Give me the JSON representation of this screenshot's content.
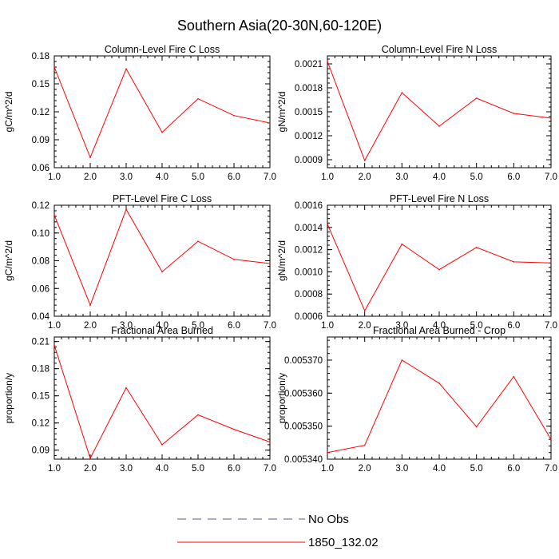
{
  "figure": {
    "title": "Southern Asia(20-30N,60-120E)"
  },
  "legend": {
    "entries": [
      {
        "label": "No Obs",
        "style": "dashed",
        "color": "#5a5a8a"
      },
      {
        "label": "1850_132.02",
        "style": "solid",
        "color": "#ff0000"
      }
    ]
  },
  "chart_data": [
    {
      "type": "line",
      "title": "Column-Level Fire C Loss",
      "ylabel": "gC/m^2/d",
      "x": [
        1,
        2,
        3,
        4,
        5,
        6,
        7
      ],
      "xticks": [
        "1.0",
        "2.0",
        "3.0",
        "4.0",
        "5.0",
        "6.0",
        "7.0"
      ],
      "xlim": [
        1,
        7
      ],
      "ylim": [
        0.06,
        0.18
      ],
      "yticks": [
        "0.06",
        "0.09",
        "0.12",
        "0.15",
        "0.18"
      ],
      "ytick_values": [
        0.06,
        0.09,
        0.12,
        0.15,
        0.18
      ],
      "series": [
        {
          "name": "1850_132.02",
          "color": "#ff0000",
          "values": [
            0.168,
            0.071,
            0.166,
            0.098,
            0.134,
            0.116,
            0.108
          ]
        }
      ]
    },
    {
      "type": "line",
      "title": "Column-Level Fire N Loss",
      "ylabel": "gN/m^2/d",
      "x": [
        1,
        2,
        3,
        4,
        5,
        6,
        7
      ],
      "xticks": [
        "1.0",
        "2.0",
        "3.0",
        "4.0",
        "5.0",
        "6.0",
        "7.0"
      ],
      "xlim": [
        1,
        7
      ],
      "ylim": [
        0.0008,
        0.0022
      ],
      "yticks": [
        "0.0009",
        "0.0012",
        "0.0015",
        "0.0018",
        "0.0021"
      ],
      "ytick_values": [
        0.0009,
        0.0012,
        0.0015,
        0.0018,
        0.0021
      ],
      "series": [
        {
          "name": "1850_132.02",
          "color": "#ff0000",
          "values": [
            0.00213,
            0.00089,
            0.00174,
            0.00132,
            0.00167,
            0.00148,
            0.00142
          ]
        }
      ]
    },
    {
      "type": "line",
      "title": "PFT-Level Fire C Loss",
      "ylabel": "gC/m^2/d",
      "x": [
        1,
        2,
        3,
        4,
        5,
        6,
        7
      ],
      "xticks": [
        "1.0",
        "2.0",
        "3.0",
        "4.0",
        "5.0",
        "6.0",
        "7.0"
      ],
      "xlim": [
        1,
        7
      ],
      "ylim": [
        0.04,
        0.12
      ],
      "yticks": [
        "0.04",
        "0.06",
        "0.08",
        "0.10",
        "0.12"
      ],
      "ytick_values": [
        0.04,
        0.06,
        0.08,
        0.1,
        0.12
      ],
      "series": [
        {
          "name": "1850_132.02",
          "color": "#ff0000",
          "values": [
            0.113,
            0.048,
            0.117,
            0.072,
            0.094,
            0.081,
            0.078
          ]
        }
      ]
    },
    {
      "type": "line",
      "title": "PFT-Level Fire N Loss",
      "ylabel": "gN/m^2/d",
      "x": [
        1,
        2,
        3,
        4,
        5,
        6,
        7
      ],
      "xticks": [
        "1.0",
        "2.0",
        "3.0",
        "4.0",
        "5.0",
        "6.0",
        "7.0"
      ],
      "xlim": [
        1,
        7
      ],
      "ylim": [
        0.0006,
        0.0016
      ],
      "yticks": [
        "0.0006",
        "0.0008",
        "0.0010",
        "0.0012",
        "0.0014",
        "0.0016"
      ],
      "ytick_values": [
        0.0006,
        0.0008,
        0.001,
        0.0012,
        0.0014,
        0.0016
      ],
      "series": [
        {
          "name": "1850_132.02",
          "color": "#ff0000",
          "values": [
            0.00143,
            0.00065,
            0.00125,
            0.00102,
            0.00122,
            0.00109,
            0.00108
          ]
        }
      ]
    },
    {
      "type": "line",
      "title": "Fractional Area Burned",
      "ylabel": "proportion/y",
      "x": [
        1,
        2,
        3,
        4,
        5,
        6,
        7
      ],
      "xticks": [
        "1.0",
        "2.0",
        "3.0",
        "4.0",
        "5.0",
        "6.0",
        "7.0"
      ],
      "xlim": [
        1,
        7
      ],
      "ylim": [
        0.08,
        0.215
      ],
      "yticks": [
        "0.09",
        "0.12",
        "0.15",
        "0.18",
        "0.21"
      ],
      "ytick_values": [
        0.09,
        0.12,
        0.15,
        0.18,
        0.21
      ],
      "series": [
        {
          "name": "1850_132.02",
          "color": "#ff0000",
          "values": [
            0.206,
            0.081,
            0.159,
            0.096,
            0.129,
            0.113,
            0.099
          ]
        }
      ]
    },
    {
      "type": "line",
      "title": "Fractional Area Burned - Crop",
      "ylabel": "proportion/y",
      "x": [
        1,
        2,
        3,
        4,
        5,
        6,
        7
      ],
      "xticks": [
        "1.0",
        "2.0",
        "3.0",
        "4.0",
        "5.0",
        "6.0",
        "7.0"
      ],
      "xlim": [
        1,
        7
      ],
      "ylim": [
        0.00534,
        0.005377
      ],
      "yticks": [
        "0.005340",
        "0.005350",
        "0.005360",
        "0.005370"
      ],
      "ytick_values": [
        0.00534,
        0.00535,
        0.00536,
        0.00537
      ],
      "series": [
        {
          "name": "1850_132.02",
          "color": "#ff0000",
          "values": [
            0.005342,
            0.0053442,
            0.00537,
            0.005363,
            0.0053498,
            0.005365,
            0.005346
          ]
        }
      ]
    }
  ]
}
